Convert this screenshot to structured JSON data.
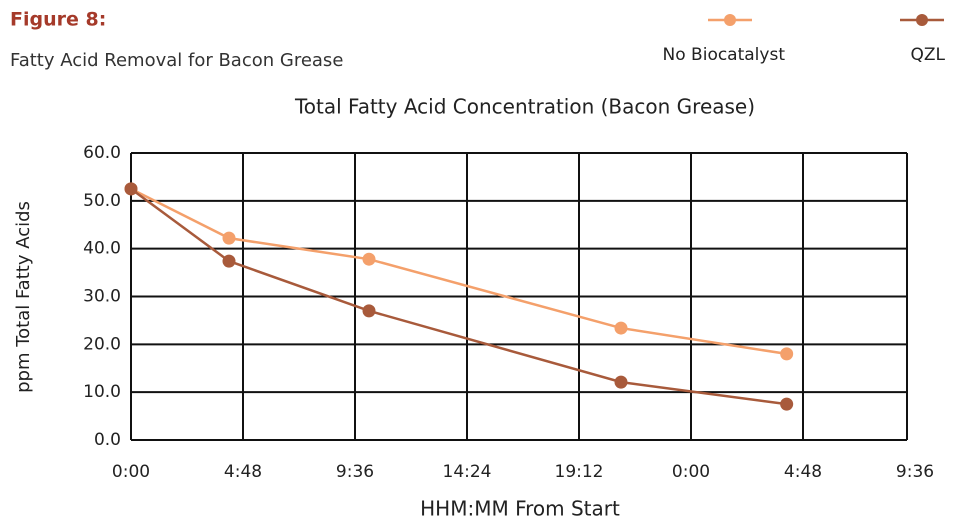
{
  "figure_label": "Figure 8:",
  "subtitle": "Fatty Acid Removal for Bacon Grease",
  "chart_data": {
    "type": "line",
    "title": "Total Fatty Acid Concentration (Bacon Grease)",
    "x_label": "HHM:MM From Start",
    "y_label": "ppm Total Fatty Acids",
    "x": [
      0,
      4.2,
      10.2,
      21.0,
      28.1
    ],
    "series": [
      {
        "name": "No Biocatalyst",
        "color": "#f4a06b",
        "values": [
          52.5,
          42.2,
          37.8,
          23.4,
          18.0
        ]
      },
      {
        "name": "QZL",
        "color": "#a85a3b",
        "values": [
          52.5,
          37.4,
          27.0,
          12.1,
          7.5
        ]
      }
    ],
    "xlim": [
      0,
      33.6
    ],
    "xticks": [
      {
        "value": 0,
        "label": "0:00"
      },
      {
        "value": 4.8,
        "label": "4:48"
      },
      {
        "value": 9.6,
        "label": "9:36"
      },
      {
        "value": 14.4,
        "label": "14:24"
      },
      {
        "value": 19.2,
        "label": "19:12"
      },
      {
        "value": 24,
        "label": "0:00"
      },
      {
        "value": 28.8,
        "label": "4:48"
      },
      {
        "value": 33.6,
        "label": "9:36"
      }
    ],
    "ylim": [
      0,
      60
    ],
    "yticks": [
      {
        "value": 0,
        "label": "0.0"
      },
      {
        "value": 10,
        "label": "10.0"
      },
      {
        "value": 20,
        "label": "20.0"
      },
      {
        "value": 30,
        "label": "30.0"
      },
      {
        "value": 40,
        "label": "40.0"
      },
      {
        "value": 50,
        "label": "50.0"
      },
      {
        "value": 60,
        "label": "60.0"
      }
    ],
    "grid": true,
    "legend": "top-right"
  }
}
